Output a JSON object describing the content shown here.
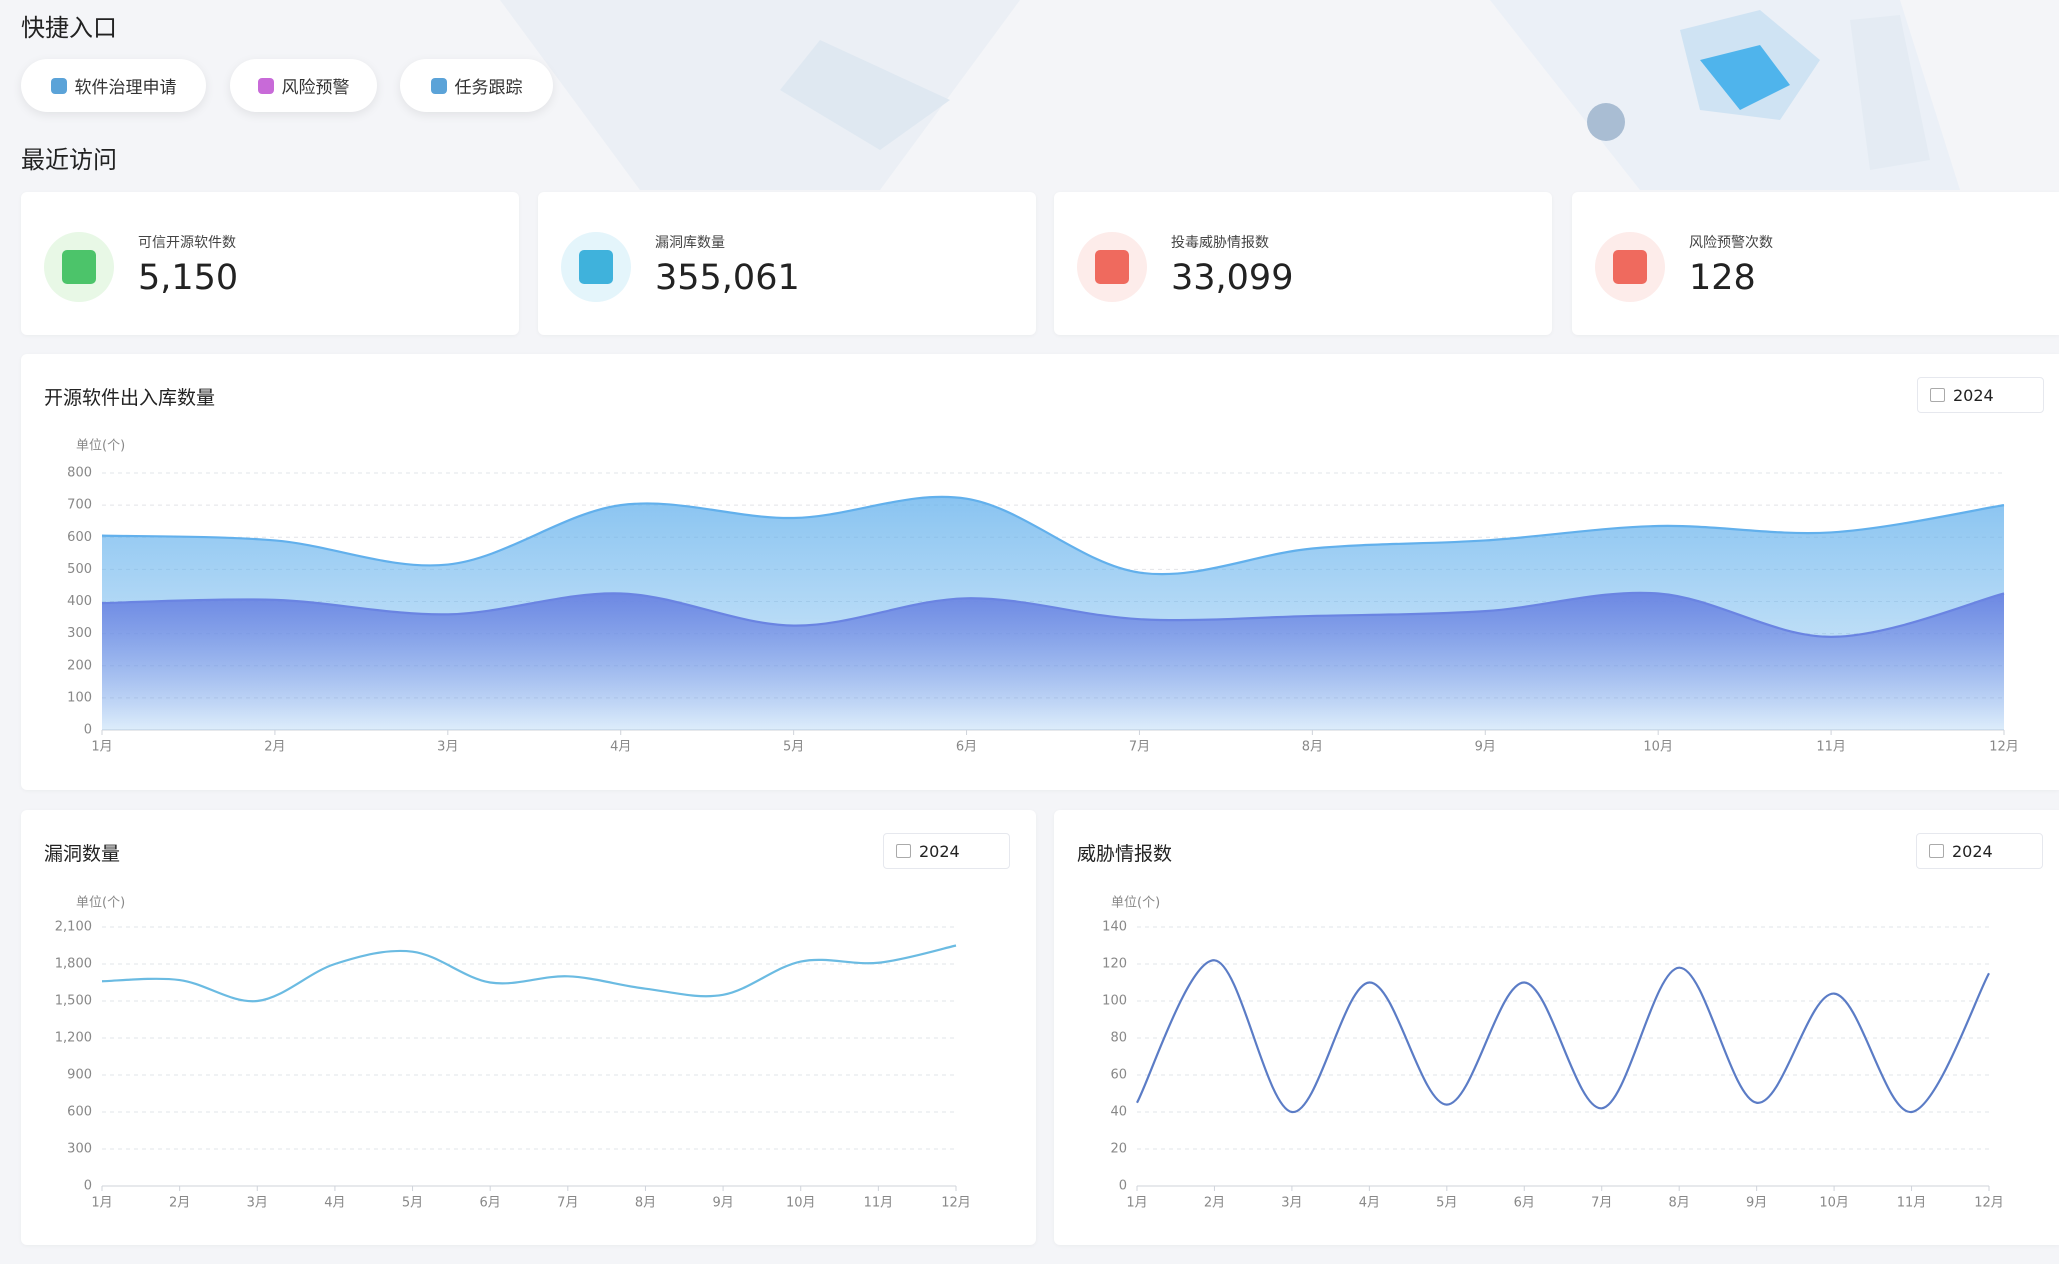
{
  "quick_entry": {
    "title": "快捷入口",
    "items": [
      "软件治理申请",
      "风险预警",
      "任务跟踪"
    ]
  },
  "recent": {
    "title": "最近访问"
  },
  "stats": [
    {
      "label": "可信开源软件数",
      "value": "5,150"
    },
    {
      "label": "漏洞库数量",
      "value": "355,061"
    },
    {
      "label": "投毒威胁情报数",
      "value": "33,099"
    },
    {
      "label": "风险预警次数",
      "value": "128"
    }
  ],
  "chart_data": [
    {
      "type": "area",
      "title": "开源软件出入库数量",
      "year": "2024",
      "unit": "单位(个)",
      "categories": [
        "1月",
        "2月",
        "3月",
        "4月",
        "5月",
        "6月",
        "7月",
        "8月",
        "9月",
        "10月",
        "11月",
        "12月"
      ],
      "series": [
        {
          "color": "#62b0ec",
          "values": [
            605,
            590,
            515,
            700,
            660,
            720,
            490,
            565,
            590,
            635,
            615,
            700
          ]
        },
        {
          "color": "#6a84e2",
          "values": [
            395,
            405,
            360,
            425,
            325,
            410,
            345,
            355,
            370,
            425,
            290,
            425
          ]
        }
      ],
      "ylim": [
        0,
        800
      ],
      "yticks": [
        0,
        100,
        200,
        300,
        400,
        500,
        600,
        700,
        800
      ],
      "grid": true
    },
    {
      "type": "line",
      "title": "漏洞数量",
      "year": "2024",
      "unit": "单位(个)",
      "categories": [
        "1月",
        "2月",
        "3月",
        "4月",
        "5月",
        "6月",
        "7月",
        "8月",
        "9月",
        "10月",
        "11月",
        "12月"
      ],
      "series": [
        {
          "color": "#6bbbe2",
          "values": [
            1660,
            1670,
            1500,
            1800,
            1900,
            1650,
            1700,
            1600,
            1550,
            1820,
            1810,
            1950
          ]
        }
      ],
      "ylim": [
        0,
        2100
      ],
      "yticks": [
        0,
        300,
        600,
        900,
        {
          "value": 1200,
          "label": "1,200"
        },
        {
          "value": 1500,
          "label": "1,500"
        },
        {
          "value": 1800,
          "label": "1,800"
        },
        {
          "value": 2100,
          "label": "2,100"
        }
      ],
      "grid": true
    },
    {
      "type": "line",
      "title": "威胁情报数",
      "year": "2024",
      "unit": "单位(个)",
      "categories": [
        "1月",
        "2月",
        "3月",
        "4月",
        "5月",
        "6月",
        "7月",
        "8月",
        "9月",
        "10月",
        "11月",
        "12月"
      ],
      "series": [
        {
          "color": "#5b7cc6",
          "values": [
            45,
            122,
            40,
            110,
            44,
            110,
            42,
            118,
            45,
            104,
            40,
            115
          ]
        }
      ],
      "ylim": [
        0,
        140
      ],
      "yticks": [
        0,
        20,
        40,
        60,
        80,
        100,
        120,
        140
      ],
      "grid": true
    }
  ]
}
